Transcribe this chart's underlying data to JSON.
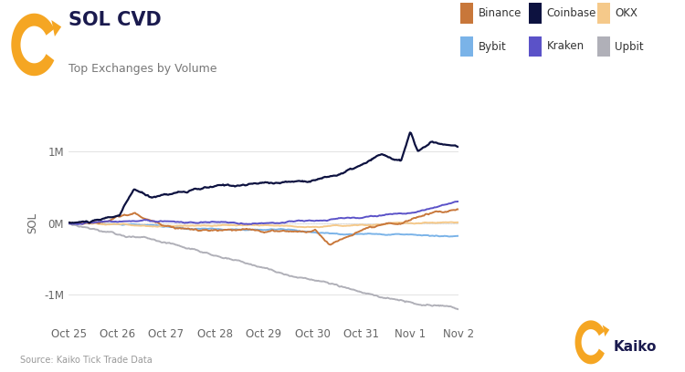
{
  "title": "SOL CVD",
  "subtitle": "Top Exchanges by Volume",
  "ylabel": "SOL",
  "source": "Source: Kaiko Tick Trade Data",
  "background_color": "#ffffff",
  "title_color": "#1a1a4e",
  "subtitle_color": "#777777",
  "exchanges": [
    "Binance",
    "Coinbase",
    "OKX",
    "Bybit",
    "Kraken",
    "Upbit"
  ],
  "colors": {
    "Binance": "#c8773a",
    "Coinbase": "#0d1240",
    "OKX": "#f5c98a",
    "Bybit": "#7ab3e8",
    "Kraken": "#5b52c8",
    "Upbit": "#b0b0b8"
  },
  "x_labels": [
    "Oct 25",
    "Oct 26",
    "Oct 27",
    "Oct 28",
    "Oct 29",
    "Oct 30",
    "Oct 31",
    "Nov 1",
    "Nov 2"
  ],
  "ylim": [
    -1400000,
    1400000
  ],
  "yticks": [
    -1000000,
    0,
    1000000
  ],
  "ytick_labels": [
    "-1M",
    "0M",
    "1M"
  ],
  "num_points": 400,
  "grid_color": "#dddddd",
  "zero_line_color": "#cccccc",
  "kaiko_orange": "#f5a623",
  "kaiko_dark": "#1a1a4e"
}
